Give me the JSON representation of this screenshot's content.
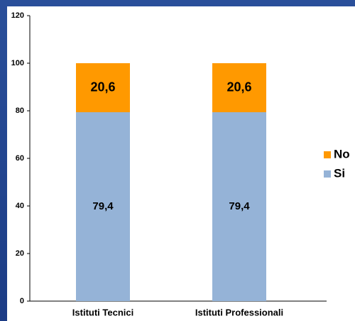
{
  "chart_data": {
    "type": "stacked_bar",
    "categories": [
      "Istituti Tecnici",
      "Istituti Professionali"
    ],
    "series": [
      {
        "name": "Si",
        "color": "#95b3d7",
        "values": [
          79.4,
          79.4
        ],
        "value_labels": [
          "79,4",
          "79,4"
        ]
      },
      {
        "name": "No",
        "color": "#ff9900",
        "values": [
          20.6,
          20.6
        ],
        "value_labels": [
          "20,6",
          "20,6"
        ]
      }
    ],
    "ylim": [
      0,
      120
    ],
    "yticks": [
      0,
      20,
      40,
      60,
      80,
      100,
      120
    ],
    "grid": false,
    "legend": "right"
  }
}
